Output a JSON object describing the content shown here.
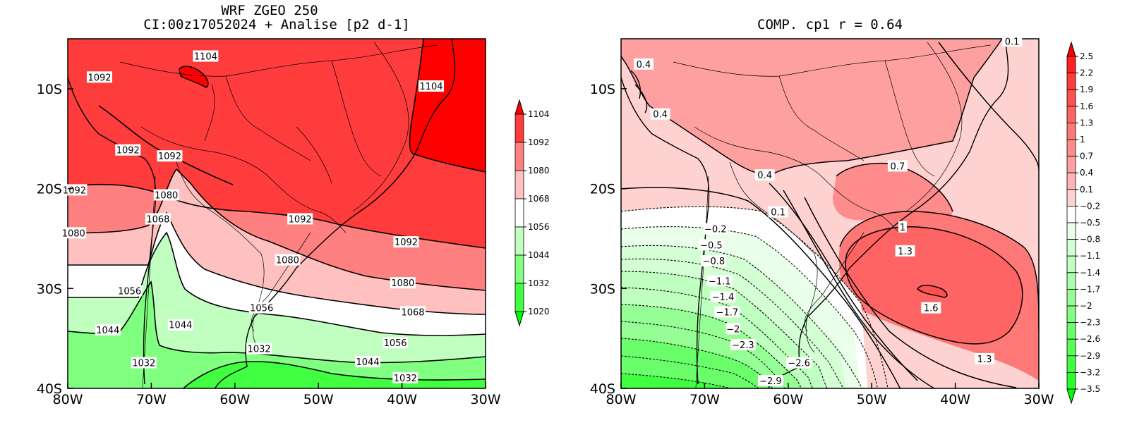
{
  "left_map": {
    "title_line1": "WRF ZGEO 250",
    "title_line2": "CI:00z17052024 + Analise  [p2 d-1]",
    "colorbar_levels": [
      "1104",
      "1092",
      "1080",
      "1068",
      "1056",
      "1044",
      "1032",
      "1020"
    ],
    "colorbar_colors": [
      "#ff0000",
      "#ff3c3c",
      "#ff8080",
      "#ffc0c0",
      "#ffffff",
      "#c0ffc0",
      "#80ff80",
      "#40ff40",
      "#00ff00"
    ],
    "contour_labels": [
      {
        "text": "1104",
        "lon": -63.5,
        "lat": -6.8
      },
      {
        "text": "1104",
        "lon": -36.5,
        "lat": -9.8
      },
      {
        "text": "1092",
        "lon": -76.2,
        "lat": -8.9
      },
      {
        "text": "1092",
        "lon": -72.8,
        "lat": -16.2
      },
      {
        "text": "1092",
        "lon": -67.8,
        "lat": -16.8
      },
      {
        "text": "1092",
        "lon": -79.2,
        "lat": -20.2
      },
      {
        "text": "1092",
        "lon": -52.2,
        "lat": -23.1
      },
      {
        "text": "1092",
        "lon": -39.5,
        "lat": -25.4
      },
      {
        "text": "1080",
        "lon": -68.2,
        "lat": -20.7
      },
      {
        "text": "1080",
        "lon": -79.3,
        "lat": -24.5
      },
      {
        "text": "1080",
        "lon": -53.7,
        "lat": -27.2
      },
      {
        "text": "1080",
        "lon": -39.9,
        "lat": -29.5
      },
      {
        "text": "1068",
        "lon": -69.2,
        "lat": -23.1
      },
      {
        "text": "1068",
        "lon": -38.7,
        "lat": -32.4
      },
      {
        "text": "1056",
        "lon": -72.6,
        "lat": -30.3
      },
      {
        "text": "1056",
        "lon": -56.8,
        "lat": -32.0
      },
      {
        "text": "1056",
        "lon": -40.8,
        "lat": -35.5
      },
      {
        "text": "1044",
        "lon": -75.2,
        "lat": -34.2
      },
      {
        "text": "1044",
        "lon": -66.5,
        "lat": -33.7
      },
      {
        "text": "1044",
        "lon": -44.1,
        "lat": -37.4
      },
      {
        "text": "1032",
        "lon": -57.1,
        "lat": -36.1
      },
      {
        "text": "1032",
        "lon": -70.9,
        "lat": -37.5
      },
      {
        "text": "1032",
        "lon": -39.6,
        "lat": -39.0
      }
    ]
  },
  "right_map": {
    "title": "COMP. cp1   r =  0.64",
    "colorbar_levels": [
      "2.5",
      "2.2",
      "1.9",
      "1.6",
      "1.3",
      "1",
      "0.7",
      "0.4",
      "0.1",
      "−0.2",
      "−0.5",
      "−0.8",
      "−1.1",
      "−1.4",
      "−1.7",
      "−2",
      "−2.3",
      "−2.6",
      "−2.9",
      "−3.2",
      "−3.5"
    ],
    "colorbar_colors": [
      "#ff0000",
      "#ff2020",
      "#ff3c3c",
      "#ff5050",
      "#ff6464",
      "#ff7878",
      "#ff8c8c",
      "#ffa0a0",
      "#ffb4b4",
      "#ffd2d2",
      "#ffffff",
      "#eaffea",
      "#d4ffd4",
      "#bfffbf",
      "#aaffaa",
      "#95ff95",
      "#80ff80",
      "#6aff6a",
      "#55ff55",
      "#40ff40",
      "#2aff2a",
      "#00ff00"
    ],
    "contour_labels": [
      {
        "text": "0.1",
        "lon": -33.2,
        "lat": -5.3
      },
      {
        "text": "0.4",
        "lon": -77.3,
        "lat": -7.6
      },
      {
        "text": "0.4",
        "lon": -75.3,
        "lat": -12.6
      },
      {
        "text": "0.4",
        "lon": -62.8,
        "lat": -18.7
      },
      {
        "text": "0.7",
        "lon": -46.9,
        "lat": -17.8
      },
      {
        "text": "0.1",
        "lon": -61.2,
        "lat": -22.4
      },
      {
        "text": "1",
        "lon": -46.3,
        "lat": -23.9
      },
      {
        "text": "1.3",
        "lon": -46.0,
        "lat": -26.3
      },
      {
        "text": "1.6",
        "lon": -42.9,
        "lat": -32.0
      },
      {
        "text": "1.3",
        "lon": -36.5,
        "lat": -37.1
      },
      {
        "text": "−0.2",
        "lon": -68.7,
        "lat": -24.1
      },
      {
        "text": "−0.5",
        "lon": -69.2,
        "lat": -25.7
      },
      {
        "text": "−0.8",
        "lon": -68.9,
        "lat": -27.3
      },
      {
        "text": "−1.1",
        "lon": -68.2,
        "lat": -29.3
      },
      {
        "text": "−1.4",
        "lon": -67.8,
        "lat": -30.9
      },
      {
        "text": "−1.7",
        "lon": -67.3,
        "lat": -32.4
      },
      {
        "text": "−2",
        "lon": -66.6,
        "lat": -34.1
      },
      {
        "text": "−2.3",
        "lon": -65.4,
        "lat": -35.7
      },
      {
        "text": "−2.6",
        "lon": -58.7,
        "lat": -37.5
      },
      {
        "text": "−2.9",
        "lon": -62.1,
        "lat": -39.3
      }
    ]
  },
  "axes": {
    "x_ticks": [
      "80W",
      "70W",
      "60W",
      "50W",
      "40W",
      "30W"
    ],
    "y_ticks": [
      "10S",
      "20S",
      "30S",
      "40S"
    ],
    "lon_range": [
      -80,
      -30
    ],
    "lat_range": [
      -40,
      -5
    ]
  }
}
